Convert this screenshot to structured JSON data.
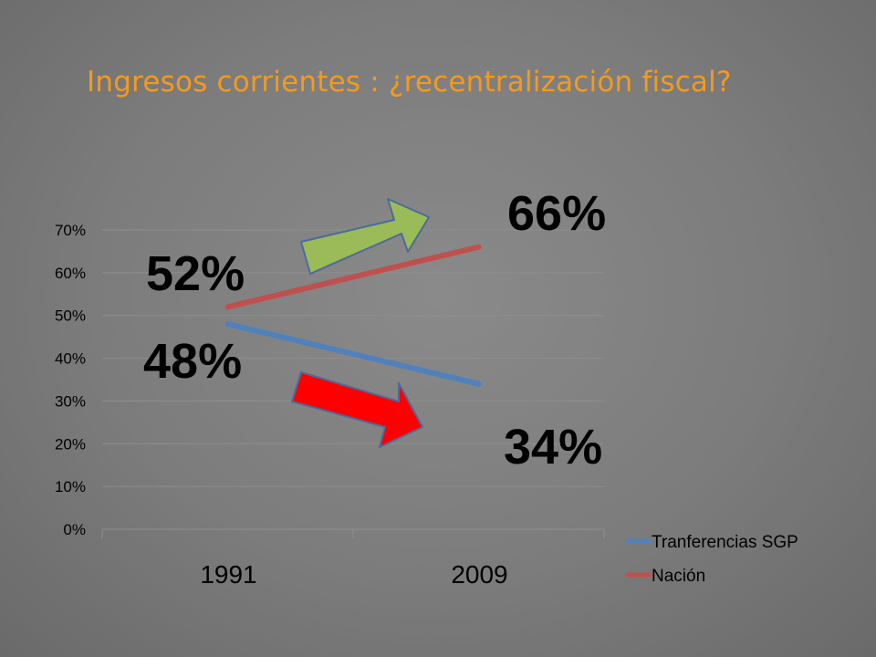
{
  "title": "Ingresos corrientes : ¿recentralización fiscal?",
  "colors": {
    "title": "#f39a1e",
    "background": "#7e7e7e",
    "series_sgp": "#4f81bd",
    "series_nacion": "#c0504d",
    "arrow_up": "#9bbb59",
    "arrow_down": "#ff0000",
    "arrow_stroke": "#4a6b9c"
  },
  "chart_data": {
    "type": "line",
    "title": "",
    "xlabel": "",
    "ylabel": "",
    "categories": [
      "1991",
      "2009"
    ],
    "ylim": [
      0,
      0.7
    ],
    "yticks": [
      "0%",
      "10%",
      "20%",
      "30%",
      "40%",
      "50%",
      "60%",
      "70%"
    ],
    "grid": true,
    "legend_position": "right-bottom",
    "series": [
      {
        "name": "Tranferencias SGP",
        "values": [
          0.48,
          0.34
        ],
        "color": "#4f81bd"
      },
      {
        "name": "Nación",
        "values": [
          0.52,
          0.66
        ],
        "color": "#c0504d"
      }
    ],
    "annotations": [
      {
        "text": "52%",
        "series": "Nación",
        "category": "1991"
      },
      {
        "text": "66%",
        "series": "Nación",
        "category": "2009"
      },
      {
        "text": "48%",
        "series": "Tranferencias SGP",
        "category": "1991"
      },
      {
        "text": "34%",
        "series": "Tranferencias SGP",
        "category": "2009"
      }
    ],
    "arrows": [
      {
        "name": "increase-arrow",
        "direction": "up-right",
        "color": "#9bbb59"
      },
      {
        "name": "decrease-arrow",
        "direction": "down-right",
        "color": "#ff0000"
      }
    ]
  }
}
